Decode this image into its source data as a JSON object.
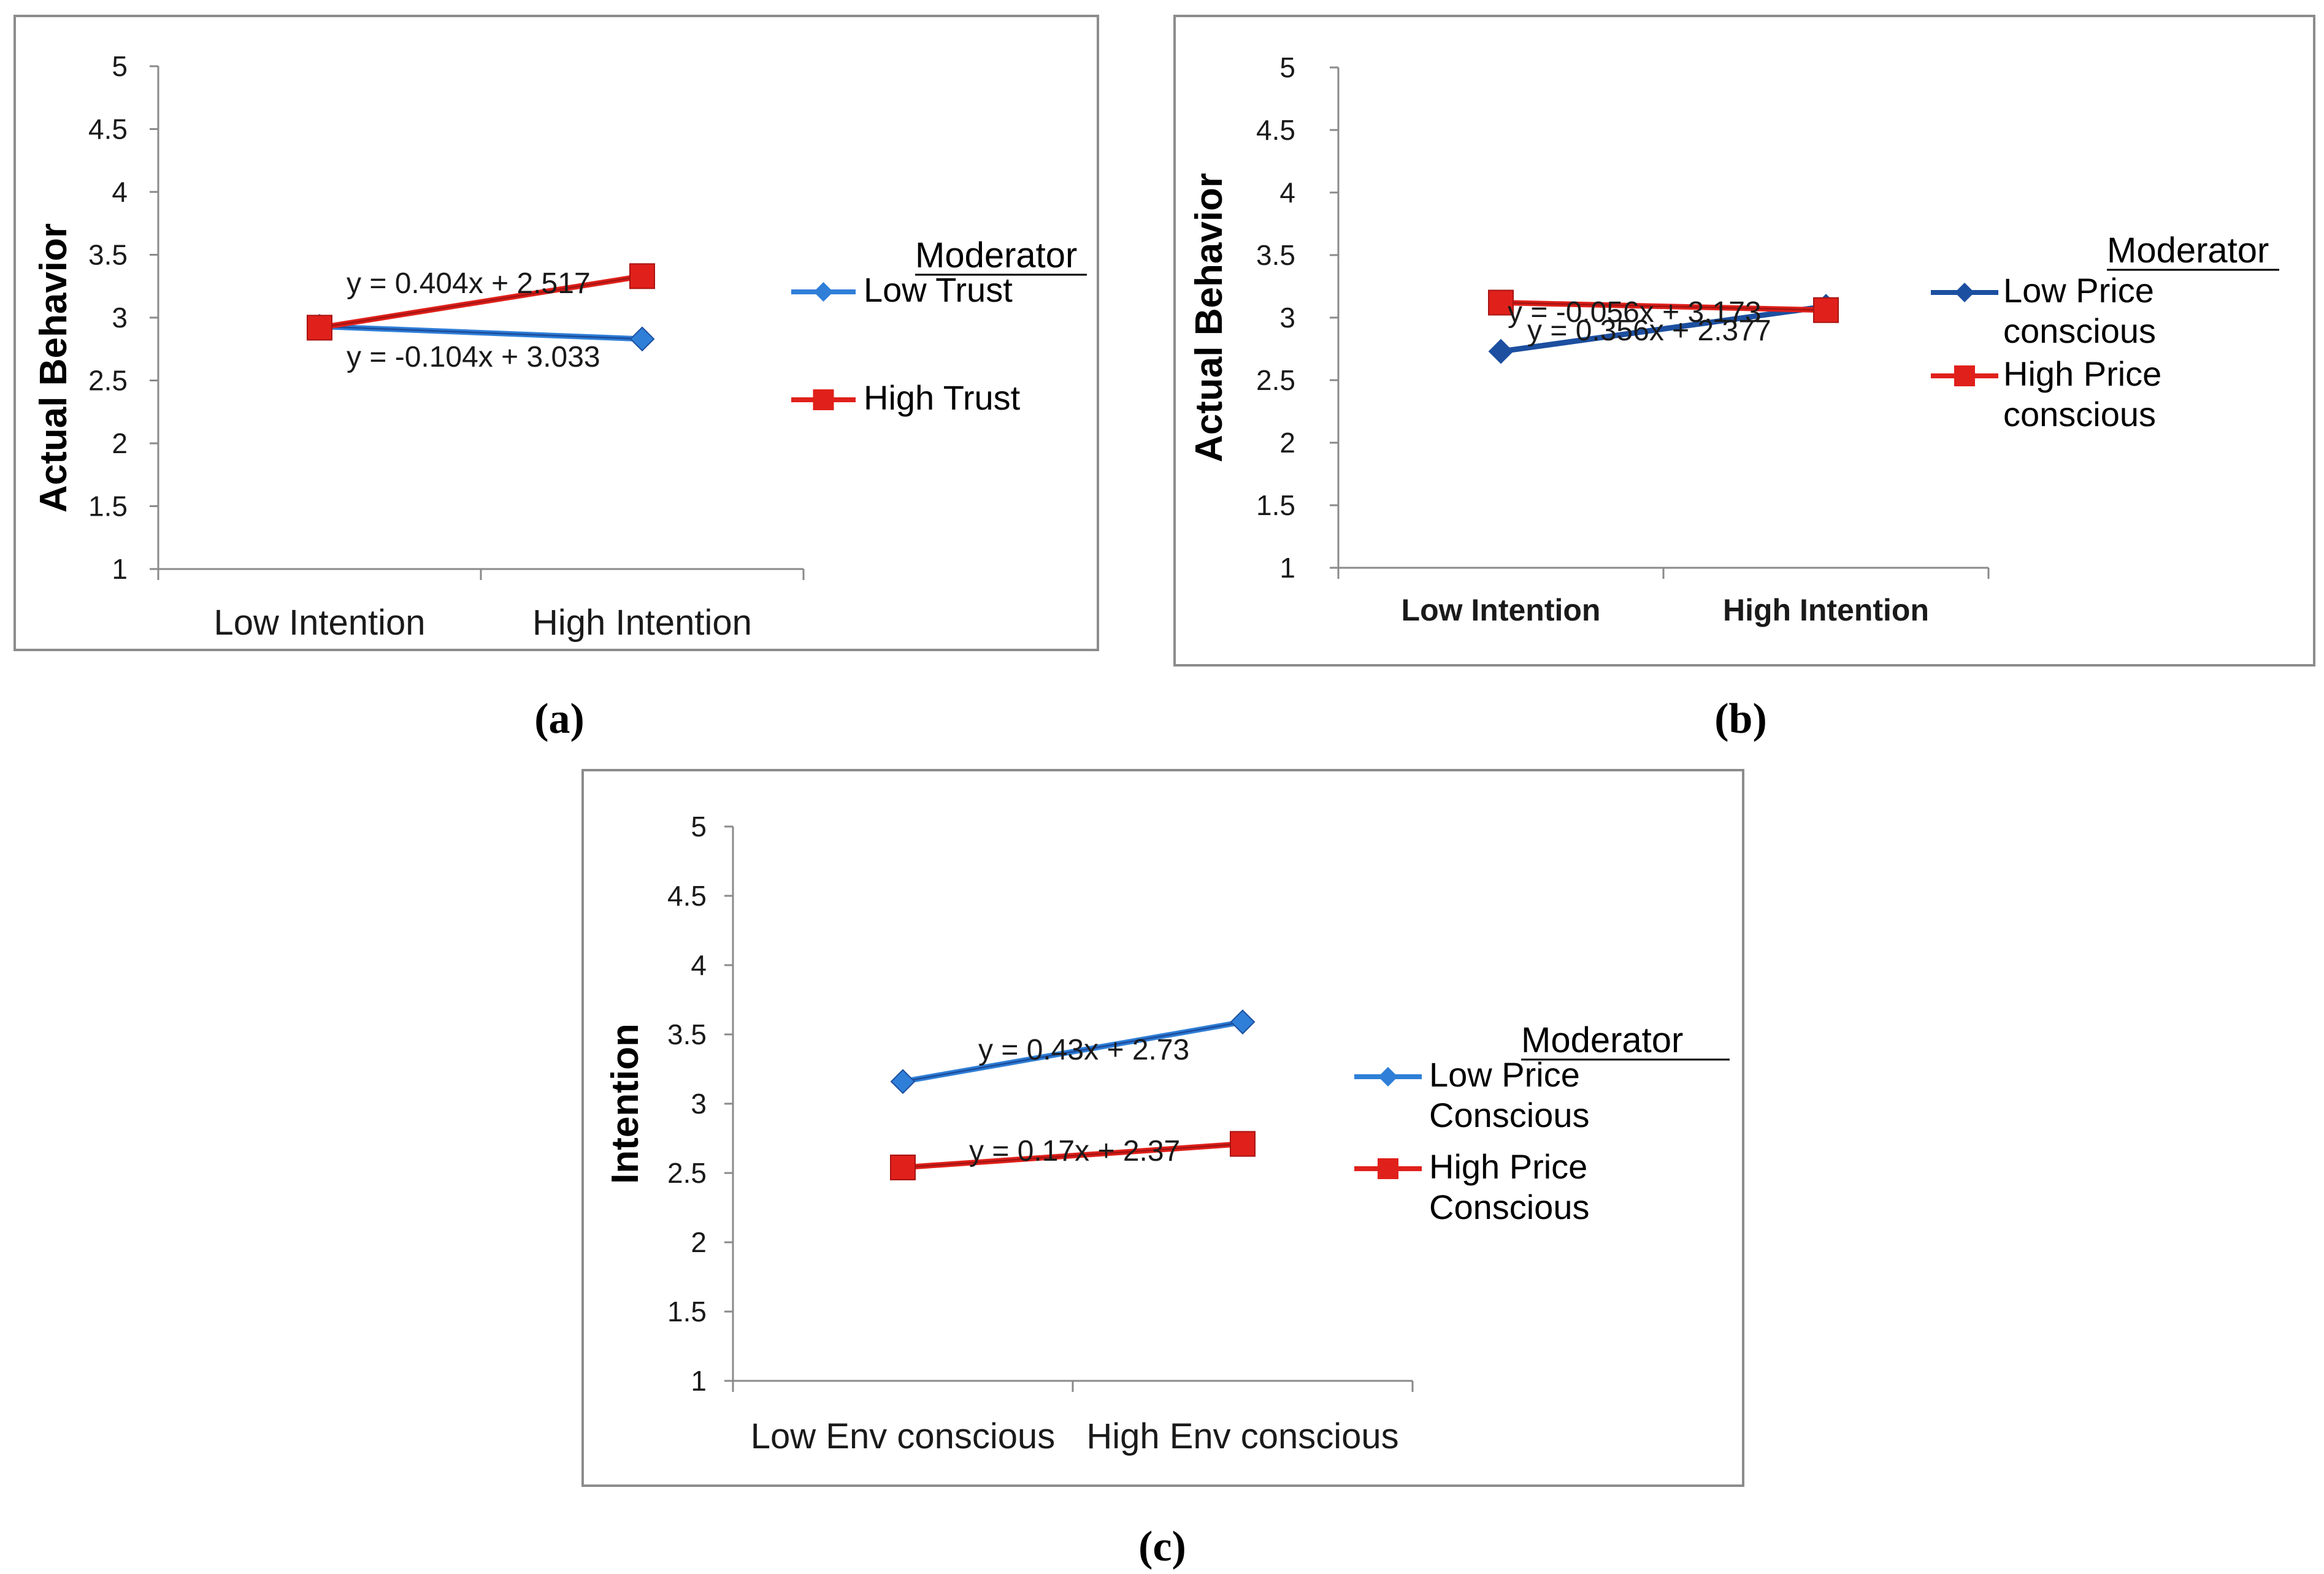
{
  "colors": {
    "low_series": "#2f7fd8",
    "low_series_dark": "#1c4fa0",
    "high_series": "#e0201b",
    "high_series_dark": "#a81412",
    "axis": "#8a8a8a",
    "frame": "#8c8c8c"
  },
  "chart_data": [
    {
      "id": "a",
      "type": "line",
      "caption": "(a)",
      "ylabel": "Actual Behavior",
      "ylim": [
        1,
        5
      ],
      "yticks": [
        "1",
        "1.5",
        "2",
        "2.5",
        "3",
        "3.5",
        "4",
        "4.5",
        "5"
      ],
      "categories": [
        "Low Intention",
        "High Intention"
      ],
      "legend_title": "Moderator",
      "series": [
        {
          "name": "Low Trust",
          "marker": "diamond",
          "values": [
            2.93,
            2.83
          ],
          "trendline": "y = -0.104x + 3.033"
        },
        {
          "name": "High Trust",
          "marker": "square",
          "values": [
            2.92,
            3.33
          ],
          "trendline": "y = 0.404x + 2.517"
        }
      ]
    },
    {
      "id": "b",
      "type": "line",
      "caption": "(b)",
      "ylabel": "Actual Behavior",
      "ylim": [
        1,
        5
      ],
      "yticks": [
        "1",
        "1.5",
        "2",
        "2.5",
        "3",
        "3.5",
        "4",
        "4.5",
        "5"
      ],
      "categories": [
        "Low Intention",
        "High Intention"
      ],
      "legend_title": "Moderator",
      "series": [
        {
          "name": "Low Price conscious",
          "marker": "diamond",
          "values": [
            2.73,
            3.09
          ],
          "trendline": "y = 0.356x + 2.377"
        },
        {
          "name": "High Price conscious",
          "marker": "square",
          "values": [
            3.12,
            3.06
          ],
          "trendline": "y = -0.056x + 3.173"
        }
      ]
    },
    {
      "id": "c",
      "type": "line",
      "caption": "(c)",
      "ylabel": "Intention",
      "ylim": [
        1,
        5
      ],
      "yticks": [
        "1",
        "1.5",
        "2",
        "2.5",
        "3",
        "3.5",
        "4",
        "4.5",
        "5"
      ],
      "categories": [
        "Low Env conscious",
        "High Env conscious"
      ],
      "legend_title": "Moderator",
      "series": [
        {
          "name": "Low Price Conscious",
          "marker": "diamond",
          "values": [
            3.16,
            3.59
          ],
          "trendline": "y = 0.43x + 2.73"
        },
        {
          "name": "High Price Conscious",
          "marker": "square",
          "values": [
            2.54,
            2.71
          ],
          "trendline": "y = 0.17x + 2.37"
        }
      ]
    }
  ]
}
